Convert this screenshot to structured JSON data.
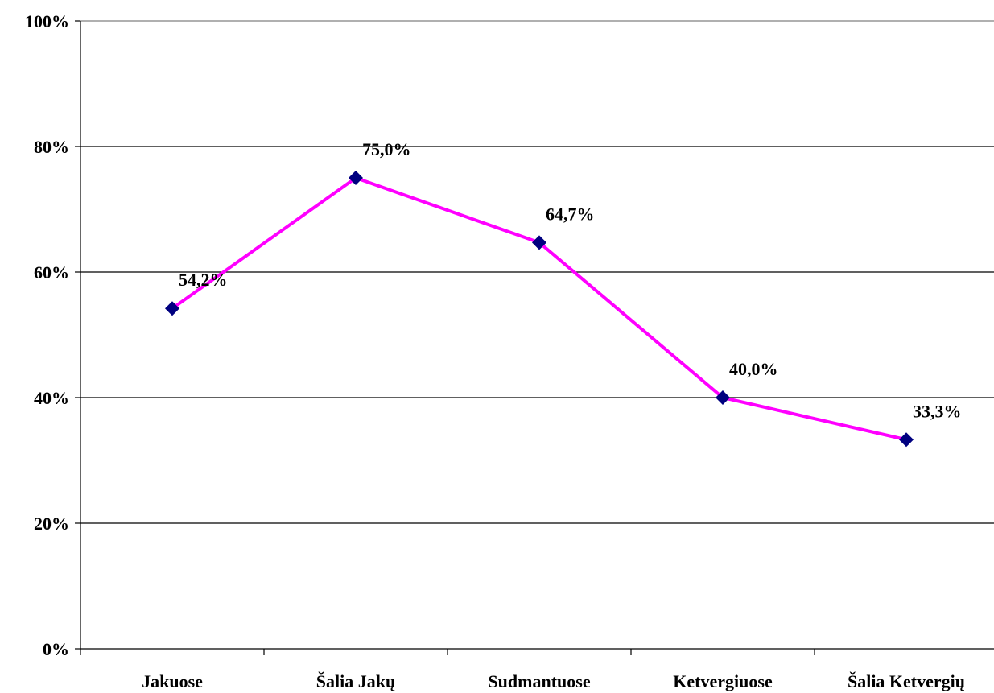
{
  "chart_data": {
    "type": "line",
    "categories": [
      "Jakuose",
      "Šalia Jakų",
      "Sudmantuose",
      "Ketvergiuose",
      "Šalia Ketvergių"
    ],
    "series": [
      {
        "values": [
          54.2,
          75.0,
          64.7,
          40.0,
          33.3
        ],
        "data_labels": [
          "54,2%",
          "75,0%",
          "64,7%",
          "40,0%",
          "33,3%"
        ]
      }
    ],
    "ylim": [
      0,
      100
    ],
    "yticks": [
      0,
      20,
      40,
      60,
      80,
      100
    ],
    "ytick_labels": [
      "0%",
      "20%",
      "40%",
      "60%",
      "80%",
      "100%"
    ],
    "grid": true,
    "legend": "none",
    "colors": {
      "line": "#ff00ff",
      "marker": "#000080",
      "grid": "#000000",
      "axis": "#000000"
    }
  }
}
